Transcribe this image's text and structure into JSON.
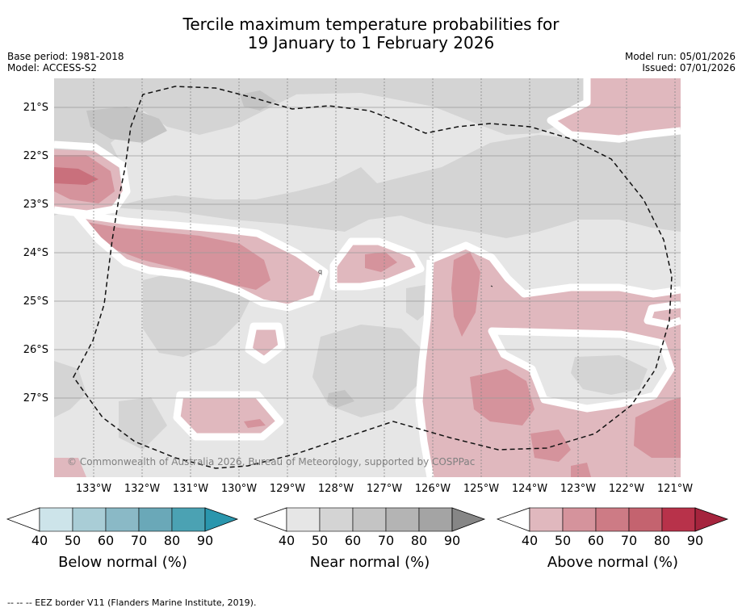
{
  "header": {
    "title_line1": "Tercile maximum temperature probabilities for",
    "title_line2": "19 January to 1 February 2026",
    "base_period": "Base period: 1981-2018",
    "model": "Model: ACCESS-S2",
    "model_run": "Model run: 05/01/2026",
    "issued": "Issued: 07/01/2026"
  },
  "map": {
    "latitude_labels": [
      "21°S",
      "22°S",
      "23°S",
      "24°S",
      "25°S",
      "26°S",
      "27°S"
    ],
    "longitude_labels": [
      "133°W",
      "132°W",
      "131°W",
      "130°W",
      "129°W",
      "128°W",
      "127°W",
      "126°W",
      "125°W",
      "124°W",
      "123°W",
      "122°W",
      "121°W"
    ],
    "copyright": "© Commonwealth of Australia 2026, Bureau of Meteorology, supported by COSPPac"
  },
  "colors": {
    "below": [
      "#cde4ea",
      "#a9cdd6",
      "#8ab9c6",
      "#6aa8b8",
      "#4ba2b3",
      "#2a96ad"
    ],
    "near": [
      "#e6e6e6",
      "#d4d4d4",
      "#c4c4c4",
      "#b4b4b4",
      "#a4a4a4",
      "#868686"
    ],
    "above": [
      "#e0b8be",
      "#d5939c",
      "#cd7b85",
      "#c4636f",
      "#b8324a",
      "#a5243d"
    ]
  },
  "legends": {
    "below": {
      "title": "Below normal (%)",
      "ticks": [
        "40",
        "50",
        "60",
        "70",
        "80",
        "90"
      ]
    },
    "near": {
      "title": "Near normal (%)",
      "ticks": [
        "40",
        "50",
        "60",
        "70",
        "80",
        "90"
      ]
    },
    "above": {
      "title": "Above normal (%)",
      "ticks": [
        "40",
        "50",
        "60",
        "70",
        "80",
        "90"
      ]
    }
  },
  "footer": {
    "eez": "--  --  -- EEZ border V11 (Flanders Marine Institute, 2019)."
  }
}
